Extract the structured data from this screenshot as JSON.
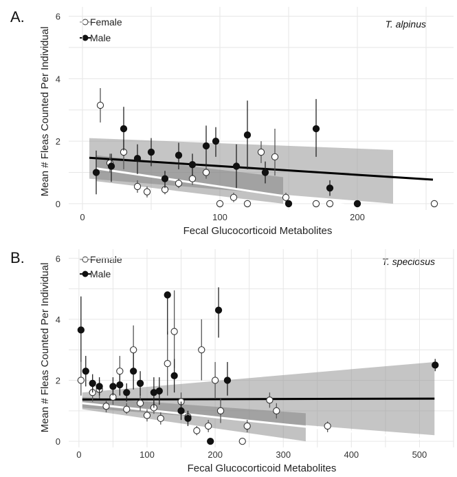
{
  "chart_data": [
    {
      "panel": "A.",
      "annotation": "T. alpinus",
      "type": "scatter",
      "xlabel": "Fecal Glucocorticoid Metabolites",
      "ylabel": "Mean # Fleas Counted Per Individual",
      "xlim": [
        -10,
        270
      ],
      "ylim": [
        -0.2,
        6.3
      ],
      "x_ticks": [
        "0",
        "100",
        "200"
      ],
      "x_tick_values": [
        0,
        100,
        200
      ],
      "y_ticks": [
        "0",
        "2",
        "4",
        "6"
      ],
      "y_tick_values": [
        0,
        2,
        4,
        6
      ],
      "grid": true,
      "legend_placement": "top-left",
      "series": [
        {
          "name": "Female",
          "marker": "open",
          "points": [
            {
              "x": 13,
              "y": 3.15,
              "err": [
                2.6,
                3.7
              ]
            },
            {
              "x": 20,
              "y": 1.3,
              "err": [
                1.0,
                1.6
              ]
            },
            {
              "x": 30,
              "y": 1.65,
              "err": [
                1.1,
                2.05
              ]
            },
            {
              "x": 40,
              "y": 0.55,
              "err": [
                0.35,
                0.75
              ]
            },
            {
              "x": 47,
              "y": 0.38,
              "err": [
                0.2,
                0.55
              ]
            },
            {
              "x": 60,
              "y": 0.45,
              "err": [
                0.3,
                0.6
              ]
            },
            {
              "x": 70,
              "y": 0.65,
              "err": [
                0.5,
                0.8
              ]
            },
            {
              "x": 80,
              "y": 0.8,
              "err": [
                0.6,
                0.95
              ]
            },
            {
              "x": 90,
              "y": 1.0,
              "err": [
                0.8,
                1.2
              ]
            },
            {
              "x": 100,
              "y": 0.0,
              "err": null
            },
            {
              "x": 110,
              "y": 0.2,
              "err": [
                0.05,
                0.35
              ]
            },
            {
              "x": 120,
              "y": 0.0,
              "err": null
            },
            {
              "x": 130,
              "y": 1.65,
              "err": [
                1.3,
                2.0
              ]
            },
            {
              "x": 140,
              "y": 1.5,
              "err": [
                0.9,
                2.4
              ]
            },
            {
              "x": 148,
              "y": 0.2,
              "err": [
                0.0,
                0.35
              ]
            },
            {
              "x": 170,
              "y": 0.0,
              "err": null
            },
            {
              "x": 180,
              "y": 0.0,
              "err": null
            },
            {
              "x": 256,
              "y": 0.0,
              "err": null
            }
          ]
        },
        {
          "name": "Male",
          "marker": "filled",
          "points": [
            {
              "x": 10,
              "y": 1.0,
              "err": [
                0.3,
                1.7
              ]
            },
            {
              "x": 21,
              "y": 1.2,
              "err": [
                0.7,
                1.6
              ]
            },
            {
              "x": 30,
              "y": 2.4,
              "err": [
                1.7,
                3.1
              ]
            },
            {
              "x": 40,
              "y": 1.45,
              "err": [
                0.95,
                1.9
              ]
            },
            {
              "x": 50,
              "y": 1.65,
              "err": [
                1.2,
                2.1
              ]
            },
            {
              "x": 60,
              "y": 0.8,
              "err": [
                0.5,
                1.05
              ]
            },
            {
              "x": 70,
              "y": 1.55,
              "err": [
                1.1,
                1.95
              ]
            },
            {
              "x": 80,
              "y": 1.25,
              "err": [
                0.9,
                1.6
              ]
            },
            {
              "x": 90,
              "y": 1.85,
              "err": [
                1.2,
                2.5
              ]
            },
            {
              "x": 97,
              "y": 2.0,
              "err": [
                1.5,
                2.45
              ]
            },
            {
              "x": 112,
              "y": 1.2,
              "err": [
                0.5,
                1.9
              ]
            },
            {
              "x": 120,
              "y": 2.2,
              "err": [
                1.1,
                3.3
              ]
            },
            {
              "x": 133,
              "y": 1.0,
              "err": [
                0.65,
                1.35
              ]
            },
            {
              "x": 150,
              "y": 0.0,
              "err": null
            },
            {
              "x": 170,
              "y": 2.4,
              "err": [
                1.5,
                3.35
              ]
            },
            {
              "x": 180,
              "y": 0.5,
              "err": [
                0.25,
                0.75
              ]
            },
            {
              "x": 200,
              "y": 0.0,
              "err": null
            }
          ]
        }
      ],
      "fits": [
        {
          "series": "Male",
          "color": "#000000",
          "x": [
            5,
            255
          ],
          "y": [
            1.47,
            0.77
          ],
          "ci_lower": [
            [
              5,
              0.8
            ],
            [
              226,
              0.0
            ]
          ],
          "ci_upper": [
            [
              5,
              2.1
            ],
            [
              226,
              1.72
            ]
          ]
        },
        {
          "series": "Female",
          "color": "#ffffff",
          "x": [
            10,
            192
          ],
          "y": [
            1.13,
            -0.05
          ],
          "ci_lower": [
            [
              10,
              0.72
            ],
            [
              146,
              0.0
            ]
          ],
          "ci_upper": [
            [
              10,
              1.55
            ],
            [
              146,
              0.85
            ]
          ]
        }
      ]
    },
    {
      "panel": "B.",
      "annotation": "T. speciosus",
      "type": "scatter",
      "xlabel": "Fecal Glucocorticoid Metabolites",
      "ylabel": "Mean # Fleas Counted Per Individual",
      "xlim": [
        -15,
        550
      ],
      "ylim": [
        -0.2,
        6.3
      ],
      "x_ticks": [
        "0",
        "100",
        "200",
        "300",
        "400",
        "500"
      ],
      "x_tick_values": [
        0,
        100,
        200,
        300,
        400,
        500
      ],
      "y_ticks": [
        "0",
        "2",
        "4",
        "6"
      ],
      "y_tick_values": [
        0,
        2,
        4,
        6
      ],
      "grid": true,
      "legend_placement": "top-left",
      "series": [
        {
          "name": "Female",
          "marker": "open",
          "points": [
            {
              "x": 3,
              "y": 2.0,
              "err": [
                1.5,
                2.6
              ]
            },
            {
              "x": 20,
              "y": 1.6,
              "err": [
                1.3,
                1.9
              ]
            },
            {
              "x": 30,
              "y": 1.7,
              "err": [
                1.4,
                2.0
              ]
            },
            {
              "x": 40,
              "y": 1.15,
              "err": [
                0.95,
                1.35
              ]
            },
            {
              "x": 50,
              "y": 1.45,
              "err": [
                1.2,
                1.7
              ]
            },
            {
              "x": 60,
              "y": 2.3,
              "err": [
                1.8,
                2.8
              ]
            },
            {
              "x": 70,
              "y": 1.05,
              "err": [
                0.9,
                1.25
              ]
            },
            {
              "x": 80,
              "y": 3.0,
              "err": [
                2.2,
                3.8
              ]
            },
            {
              "x": 90,
              "y": 1.25,
              "err": [
                1.0,
                1.55
              ]
            },
            {
              "x": 100,
              "y": 0.85,
              "err": [
                0.65,
                1.05
              ]
            },
            {
              "x": 110,
              "y": 1.1,
              "err": [
                0.9,
                1.35
              ]
            },
            {
              "x": 120,
              "y": 0.75,
              "err": [
                0.55,
                0.95
              ]
            },
            {
              "x": 130,
              "y": 2.55,
              "err": [
                1.5,
                3.6
              ]
            },
            {
              "x": 140,
              "y": 3.6,
              "err": [
                2.4,
                4.95
              ]
            },
            {
              "x": 150,
              "y": 1.3,
              "err": [
                1.0,
                1.6
              ]
            },
            {
              "x": 160,
              "y": 0.8,
              "err": [
                0.6,
                1.0
              ]
            },
            {
              "x": 173,
              "y": 0.35,
              "err": [
                0.2,
                0.5
              ]
            },
            {
              "x": 180,
              "y": 3.0,
              "err": [
                2.0,
                4.0
              ]
            },
            {
              "x": 190,
              "y": 0.5,
              "err": [
                0.3,
                0.7
              ]
            },
            {
              "x": 200,
              "y": 2.0,
              "err": [
                1.4,
                2.6
              ]
            },
            {
              "x": 208,
              "y": 1.0,
              "err": [
                0.6,
                1.4
              ]
            },
            {
              "x": 240,
              "y": 0.0,
              "err": null
            },
            {
              "x": 247,
              "y": 0.5,
              "err": [
                0.3,
                0.7
              ]
            },
            {
              "x": 280,
              "y": 1.35,
              "err": [
                1.1,
                1.6
              ]
            },
            {
              "x": 290,
              "y": 1.0,
              "err": [
                0.75,
                1.25
              ]
            },
            {
              "x": 365,
              "y": 0.5,
              "err": [
                0.3,
                0.65
              ]
            }
          ]
        },
        {
          "name": "Male",
          "marker": "filled",
          "points": [
            {
              "x": 3,
              "y": 3.65,
              "err": [
                2.6,
                4.75
              ]
            },
            {
              "x": 10,
              "y": 2.3,
              "err": [
                1.8,
                2.8
              ]
            },
            {
              "x": 20,
              "y": 1.9,
              "err": [
                1.6,
                2.2
              ]
            },
            {
              "x": 30,
              "y": 1.8,
              "err": [
                1.5,
                2.1
              ]
            },
            {
              "x": 50,
              "y": 1.8,
              "err": [
                1.5,
                2.1
              ]
            },
            {
              "x": 60,
              "y": 1.85,
              "err": [
                1.5,
                2.2
              ]
            },
            {
              "x": 70,
              "y": 1.6,
              "err": [
                1.3,
                1.9
              ]
            },
            {
              "x": 80,
              "y": 2.3,
              "err": [
                1.7,
                2.9
              ]
            },
            {
              "x": 90,
              "y": 1.9,
              "err": [
                1.5,
                2.3
              ]
            },
            {
              "x": 110,
              "y": 1.6,
              "err": [
                1.1,
                2.1
              ]
            },
            {
              "x": 118,
              "y": 1.65,
              "err": [
                1.2,
                2.1
              ]
            },
            {
              "x": 130,
              "y": 4.8,
              "err": [
                3.5,
                4.9
              ]
            },
            {
              "x": 140,
              "y": 2.15,
              "err": [
                1.6,
                2.7
              ]
            },
            {
              "x": 150,
              "y": 1.0,
              "err": [
                0.7,
                1.3
              ]
            },
            {
              "x": 160,
              "y": 0.75,
              "err": [
                0.5,
                1.0
              ]
            },
            {
              "x": 193,
              "y": 0.0,
              "err": null
            },
            {
              "x": 205,
              "y": 4.3,
              "err": [
                3.4,
                5.05
              ]
            },
            {
              "x": 218,
              "y": 2.0,
              "err": [
                1.5,
                2.6
              ]
            },
            {
              "x": 523,
              "y": 2.5,
              "err": [
                2.3,
                2.7
              ]
            }
          ]
        }
      ],
      "fits": [
        {
          "series": "Male",
          "color": "#000000",
          "x": [
            5,
            522
          ],
          "y": [
            1.37,
            1.4
          ],
          "ci_lower": [
            [
              5,
              1.1
            ],
            [
              522,
              0.2
            ]
          ],
          "ci_upper": [
            [
              5,
              1.6
            ],
            [
              522,
              2.6
            ]
          ]
        },
        {
          "series": "Female",
          "color": "#ffffff",
          "x": [
            5,
            515
          ],
          "y": [
            1.25,
            0.05
          ],
          "ci_lower": [
            [
              5,
              1.05
            ],
            [
              333,
              0.0
            ]
          ],
          "ci_upper": [
            [
              5,
              1.45
            ],
            [
              333,
              0.92
            ]
          ]
        }
      ]
    }
  ]
}
